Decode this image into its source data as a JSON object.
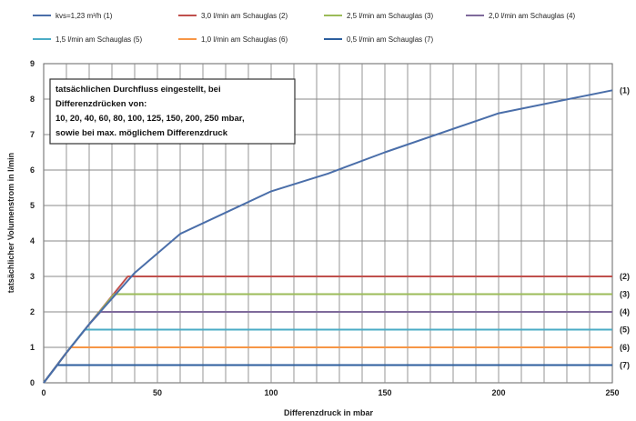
{
  "chart_data": {
    "type": "line",
    "xlabel": "Differenzdruck in mbar",
    "ylabel": "tatsächlicher Volumenstrom in l/min",
    "xlim": [
      0,
      250
    ],
    "ylim": [
      0,
      9
    ],
    "x_ticks": [
      0,
      50,
      100,
      150,
      200,
      250
    ],
    "y_ticks": [
      0,
      1,
      2,
      3,
      4,
      5,
      6,
      7,
      8,
      9
    ],
    "grid": true,
    "legend_position": "top",
    "annotation": [
      "tatsächlichen Durchfluss eingestellt, bei",
      "Differenzdrücken von:",
      "10, 20, 40, 60, 80, 100, 125, 150, 200, 250 mbar,",
      "sowie bei max. möglichem Differenzdruck"
    ],
    "series": [
      {
        "name": "kvs=1,23 m³/h",
        "tag": "(1)",
        "color": "#4a6ea9",
        "x": [
          0,
          10,
          20,
          40,
          60,
          80,
          100,
          125,
          150,
          200,
          250
        ],
        "y": [
          0,
          0.85,
          1.65,
          3.1,
          4.2,
          4.8,
          5.4,
          5.9,
          6.5,
          7.6,
          8.25
        ]
      },
      {
        "name": "3,0 l/min am Schauglas",
        "tag": "(2)",
        "color": "#c0504d",
        "x": [
          0,
          10,
          20,
          37,
          250
        ],
        "y": [
          0,
          0.85,
          1.65,
          3.0,
          3.0
        ]
      },
      {
        "name": "2,5 l/min am Schauglas",
        "tag": "(3)",
        "color": "#9bbb59",
        "x": [
          0,
          10,
          20,
          31,
          250
        ],
        "y": [
          0,
          0.85,
          1.65,
          2.5,
          2.5
        ]
      },
      {
        "name": "2,0 l/min am Schauglas",
        "tag": "(4)",
        "color": "#7f6a9b",
        "x": [
          0,
          10,
          20,
          25,
          250
        ],
        "y": [
          0,
          0.85,
          1.65,
          2.0,
          2.0
        ]
      },
      {
        "name": "1,5 l/min am Schauglas",
        "tag": "(5)",
        "color": "#4bacc6",
        "x": [
          0,
          10,
          18,
          250
        ],
        "y": [
          0,
          0.85,
          1.5,
          1.5
        ]
      },
      {
        "name": "1,0 l/min am Schauglas",
        "tag": "(6)",
        "color": "#f79646",
        "x": [
          0,
          10,
          12,
          250
        ],
        "y": [
          0,
          0.85,
          1.0,
          1.0
        ]
      },
      {
        "name": "0,5 l/min am Schauglas",
        "tag": "(7)",
        "color": "#2c5e9e",
        "x": [
          0,
          6,
          250
        ],
        "y": [
          0,
          0.5,
          0.5
        ]
      }
    ]
  }
}
